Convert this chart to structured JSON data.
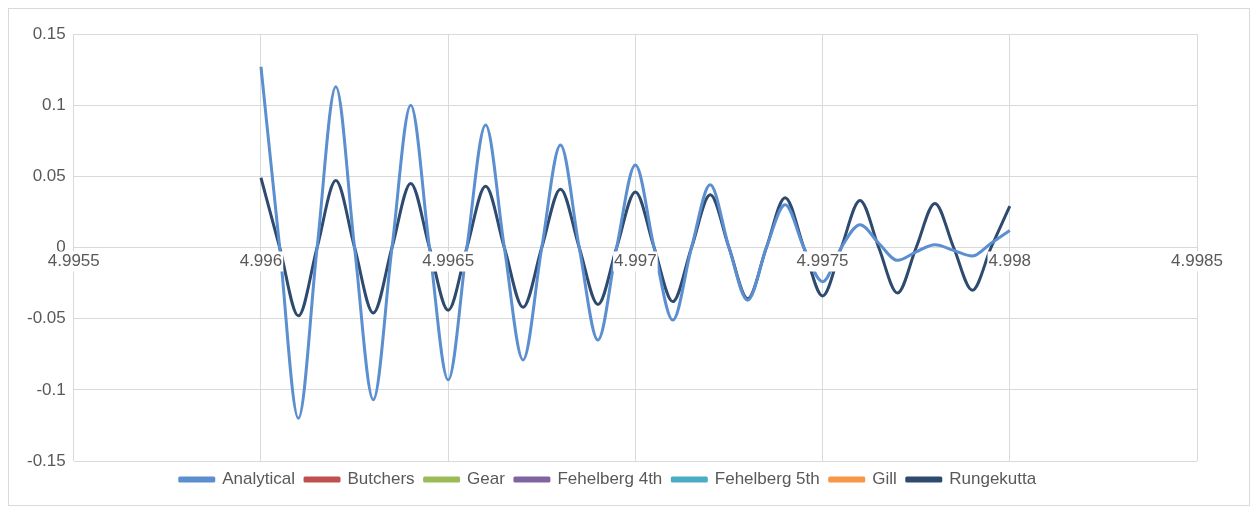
{
  "chart_data": {
    "type": "line",
    "xlim": [
      4.9955,
      4.9985
    ],
    "xticks": [
      4.9955,
      4.996,
      4.9965,
      4.997,
      4.9975,
      4.998,
      4.9985
    ],
    "ylim": [
      -0.15,
      0.15
    ],
    "yticks": [
      -0.15,
      -0.1,
      -0.05,
      0,
      0.05,
      0.1,
      0.15
    ],
    "grid": true,
    "legend": "bottom",
    "marker": "none",
    "line_style": "solid",
    "series": [
      {
        "name": "Analytical",
        "color": "#5b8fd0",
        "x": [
          4.996,
          4.99605,
          4.9961,
          4.99615,
          4.9962,
          4.99625,
          4.9963,
          4.99635,
          4.9964,
          4.99645,
          4.9965,
          4.99655,
          4.9966,
          4.99665,
          4.9967,
          4.99675,
          4.9968,
          4.99685,
          4.9969,
          4.99695,
          4.997,
          4.99705,
          4.9971,
          4.99715,
          4.9972,
          4.99725,
          4.9973,
          4.99735,
          4.9974,
          4.99745,
          4.9975,
          4.99755,
          4.9976,
          4.99765,
          4.9977,
          4.99775,
          4.9978,
          4.99785,
          4.9979,
          4.99795,
          4.998
        ],
        "values": [
          0.127,
          0,
          -0.12,
          0,
          0.113,
          0,
          -0.107,
          0,
          0.1,
          0,
          -0.093,
          0,
          0.086,
          0,
          -0.079,
          0,
          0.072,
          0,
          -0.065,
          0,
          0.058,
          0,
          -0.051,
          0,
          0.044,
          0,
          -0.037,
          0,
          0.03,
          0,
          -0.024,
          0,
          0.016,
          0.003,
          -0.009,
          -0.003,
          0.002,
          -0.002,
          -0.006,
          0.003,
          0.012
        ]
      },
      {
        "name": "Butchers",
        "color": "#c0504d"
      },
      {
        "name": "Gear",
        "color": "#9bbb59"
      },
      {
        "name": "Fehelberg 4th",
        "color": "#8064a2"
      },
      {
        "name": "Fehelberg 5th",
        "color": "#4bacc6"
      },
      {
        "name": "Gill",
        "color": "#f79646"
      },
      {
        "name": "Rungekutta",
        "color": "#2e4a6e",
        "x": [
          4.996,
          4.99605,
          4.9961,
          4.99615,
          4.9962,
          4.99625,
          4.9963,
          4.99635,
          4.9964,
          4.99645,
          4.9965,
          4.99655,
          4.9966,
          4.99665,
          4.9967,
          4.99675,
          4.9968,
          4.99685,
          4.9969,
          4.99695,
          4.997,
          4.99705,
          4.9971,
          4.99715,
          4.9972,
          4.99725,
          4.9973,
          4.99735,
          4.9974,
          4.99745,
          4.9975,
          4.99755,
          4.9976,
          4.99765,
          4.9977,
          4.99775,
          4.9978,
          4.99785,
          4.9979,
          4.99795,
          4.998
        ],
        "values": [
          0.049,
          0,
          -0.048,
          0,
          0.047,
          0,
          -0.046,
          0,
          0.045,
          0,
          -0.044,
          0,
          0.043,
          0,
          -0.042,
          0,
          0.041,
          0,
          -0.04,
          0,
          0.039,
          0,
          -0.038,
          0,
          0.037,
          0,
          -0.036,
          0,
          0.035,
          0,
          -0.034,
          0,
          0.033,
          0,
          -0.032,
          0,
          0.031,
          0,
          -0.03,
          0,
          0.029
        ]
      }
    ]
  }
}
